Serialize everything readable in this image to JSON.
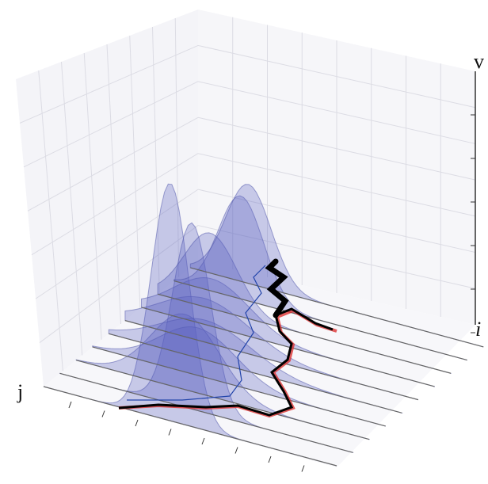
{
  "axes": {
    "z_label": "v",
    "i_label": "i",
    "j_label": "j"
  }
}
